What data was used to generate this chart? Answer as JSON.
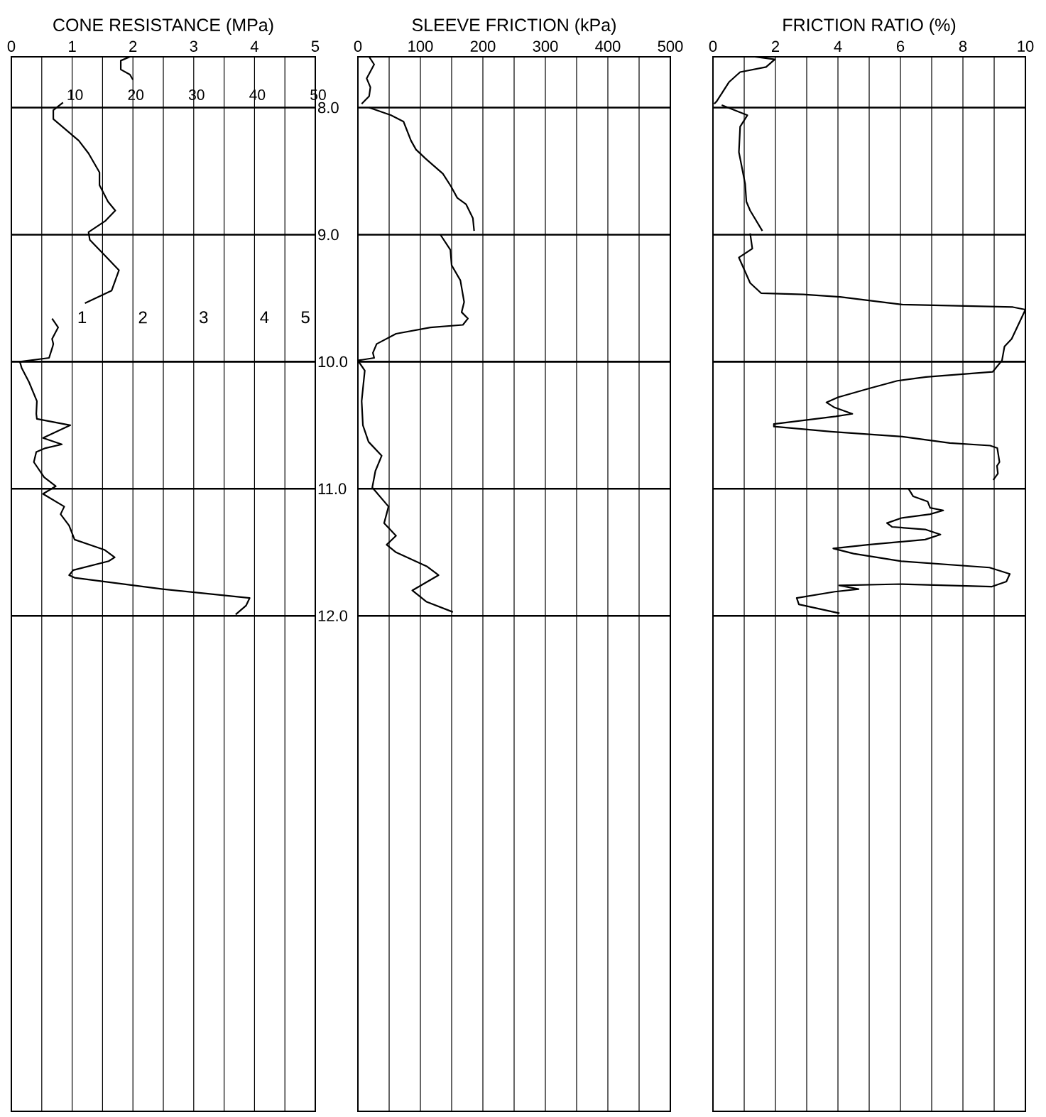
{
  "chart_data": [
    {
      "type": "line",
      "title": "CONE RESISTANCE (MPa)",
      "xlim": [
        0,
        5
      ],
      "xticks": [
        0,
        {
          "value": 0.5,
          "label": null
        },
        1,
        {
          "value": 1.5,
          "label": null
        },
        2,
        {
          "value": 2.5,
          "label": null
        },
        3,
        {
          "value": 3.5,
          "label": null
        },
        4,
        {
          "value": 4.5,
          "label": null
        },
        5
      ],
      "ylim": [
        15.9,
        7.6
      ],
      "yticks": [
        {
          "value": 8,
          "label": "8.0"
        },
        {
          "value": 9,
          "label": "9.0"
        },
        {
          "value": 10,
          "label": "10.0"
        },
        {
          "value": 11,
          "label": "11.0"
        },
        {
          "value": 12,
          "label": "12.0"
        }
      ],
      "grid": true,
      "x2lim": [
        0,
        50
      ],
      "x2ticks": [
        10,
        20,
        30,
        40,
        50
      ],
      "annotations": [
        "1",
        "2",
        "3",
        "4",
        "5"
      ],
      "series": [
        {
          "color": "#000000",
          "x": [
            1.95,
            1.8,
            1.8,
            1.95,
            2.0
          ],
          "values": [
            7.6,
            7.63,
            7.7,
            7.74,
            7.78
          ]
        },
        {
          "color": "#000000",
          "x": [
            0.85,
            0.69,
            0.69,
            1.11,
            1.27,
            1.45,
            1.45,
            1.59,
            1.71,
            1.55,
            1.27,
            1.29,
            1.51,
            1.77,
            1.65,
            1.21
          ],
          "values": [
            7.96,
            8.02,
            8.09,
            8.26,
            8.36,
            8.51,
            8.61,
            8.74,
            8.81,
            8.89,
            8.98,
            9.04,
            9.15,
            9.28,
            9.44,
            9.54
          ]
        },
        {
          "color": "#000000",
          "x": [
            0.67,
            0.77,
            0.67,
            0.69,
            0.68,
            0.62,
            0.14,
            0.17,
            0.29,
            0.42,
            0.41,
            0.42,
            0.97,
            0.52,
            0.83,
            0.56,
            0.41,
            0.37,
            0.54,
            0.73,
            0.52,
            0.87,
            0.81,
            0.95,
            1.04,
            1.53,
            1.7,
            1.6,
            1.02,
            0.95,
            1.04,
            2.49,
            3.92,
            3.86,
            3.69
          ],
          "values": [
            9.66,
            9.73,
            9.82,
            9.86,
            9.88,
            9.97,
            10.0,
            10.05,
            10.16,
            10.31,
            10.41,
            10.45,
            10.5,
            10.6,
            10.65,
            10.68,
            10.71,
            10.79,
            10.91,
            10.98,
            11.04,
            11.14,
            11.2,
            11.29,
            11.4,
            11.48,
            11.54,
            11.57,
            11.64,
            11.68,
            11.7,
            11.79,
            11.86,
            11.92,
            11.99
          ]
        }
      ]
    },
    {
      "type": "line",
      "title": "SLEEVE FRICTION (kPa)",
      "xlim": [
        0,
        500
      ],
      "xticks": [
        0,
        {
          "value": 50,
          "label": null
        },
        100,
        {
          "value": 150,
          "label": null
        },
        200,
        {
          "value": 250,
          "label": null
        },
        300,
        {
          "value": 350,
          "label": null
        },
        400,
        {
          "value": 450,
          "label": null
        },
        500
      ],
      "ylim": [
        15.9,
        7.6
      ],
      "yticks": [
        8,
        9,
        10,
        11,
        12
      ],
      "grid": true,
      "tick_labels": "x",
      "series": [
        {
          "color": "#000000",
          "x": [
            18,
            26,
            14,
            20,
            18,
            6
          ],
          "values": [
            7.6,
            7.66,
            7.77,
            7.84,
            7.91,
            7.97
          ]
        },
        {
          "color": "#000000",
          "x": [
            18,
            53,
            73,
            85,
            93,
            108,
            136,
            149,
            159,
            173,
            184,
            186
          ],
          "values": [
            8.0,
            8.06,
            8.11,
            8.26,
            8.33,
            8.4,
            8.52,
            8.62,
            8.71,
            8.76,
            8.87,
            8.97
          ]
        },
        {
          "color": "#000000",
          "x": [
            132,
            148,
            150,
            164,
            170,
            166,
            176,
            168,
            116,
            61,
            30,
            24,
            26,
            0,
            11,
            6,
            8,
            17,
            38,
            28,
            23,
            49,
            42,
            61,
            46,
            61,
            110,
            129,
            87,
            110,
            152
          ],
          "values": [
            9.0,
            9.12,
            9.24,
            9.36,
            9.53,
            9.61,
            9.66,
            9.71,
            9.73,
            9.78,
            9.86,
            9.93,
            9.97,
            9.99,
            10.07,
            10.31,
            10.5,
            10.63,
            10.74,
            10.86,
            10.99,
            11.14,
            11.27,
            11.37,
            11.44,
            11.5,
            11.61,
            11.68,
            11.8,
            11.89,
            11.97
          ]
        }
      ]
    },
    {
      "type": "line",
      "title": "FRICTION RATIO (%)",
      "xlim": [
        0,
        10
      ],
      "xticks": [
        0,
        {
          "value": 1,
          "label": null
        },
        2,
        {
          "value": 3,
          "label": null
        },
        4,
        {
          "value": 5,
          "label": null
        },
        6,
        {
          "value": 7,
          "label": null
        },
        8,
        {
          "value": 9,
          "label": null
        },
        10
      ],
      "ylim": [
        15.9,
        7.6
      ],
      "yticks": [
        8,
        9,
        10,
        11,
        12
      ],
      "grid": true,
      "tick_labels": "x",
      "series": [
        {
          "color": "#000000",
          "x": [
            1.34,
            1.98,
            1.7,
            0.87,
            0.51,
            0.12,
            0.04
          ],
          "values": [
            7.6,
            7.62,
            7.68,
            7.72,
            7.8,
            7.95,
            7.97
          ]
        },
        {
          "color": "#000000",
          "x": [
            0.28,
            1.1,
            0.87,
            0.83,
            1.03,
            1.07,
            1.19,
            1.58
          ],
          "values": [
            7.98,
            8.06,
            8.15,
            8.35,
            8.6,
            8.74,
            8.81,
            8.97
          ]
        },
        {
          "color": "#000000",
          "x": [
            1.19,
            1.26,
            0.83,
            1.19,
            1.54,
            2.89,
            4.07,
            6.05,
            9.6,
            10.0,
            9.56,
            9.33,
            9.25,
            8.95,
            6.82,
            5.9,
            5.0,
            4.0,
            3.63,
            3.89,
            4.46,
            3.93,
            1.95,
            1.95,
            3.78,
            6.06,
            7.58,
            8.87,
            9.1,
            9.17,
            9.09,
            9.12,
            8.97
          ],
          "values": [
            8.99,
            9.11,
            9.18,
            9.38,
            9.46,
            9.47,
            9.49,
            9.55,
            9.57,
            9.59,
            9.82,
            9.88,
            9.99,
            10.08,
            10.12,
            10.15,
            10.21,
            10.28,
            10.32,
            10.36,
            10.41,
            10.43,
            10.49,
            10.51,
            10.55,
            10.59,
            10.64,
            10.66,
            10.68,
            10.79,
            10.82,
            10.88,
            10.93
          ]
        },
        {
          "color": "#000000",
          "x": [
            6.26,
            6.41,
            6.87,
            6.95,
            7.37,
            6.95,
            6.03,
            5.57,
            5.73,
            6.79,
            7.28,
            6.79,
            4.96,
            3.85,
            4.5,
            6.03,
            8.85,
            9.5,
            9.39,
            8.93,
            6.03,
            4.04,
            4.66,
            3.9,
            2.68,
            2.75,
            4.05
          ],
          "values": [
            11.0,
            11.06,
            11.1,
            11.15,
            11.17,
            11.2,
            11.23,
            11.27,
            11.3,
            11.32,
            11.36,
            11.4,
            11.44,
            11.47,
            11.51,
            11.57,
            11.62,
            11.67,
            11.73,
            11.77,
            11.75,
            11.76,
            11.79,
            11.81,
            11.86,
            11.91,
            11.98
          ]
        }
      ]
    }
  ]
}
